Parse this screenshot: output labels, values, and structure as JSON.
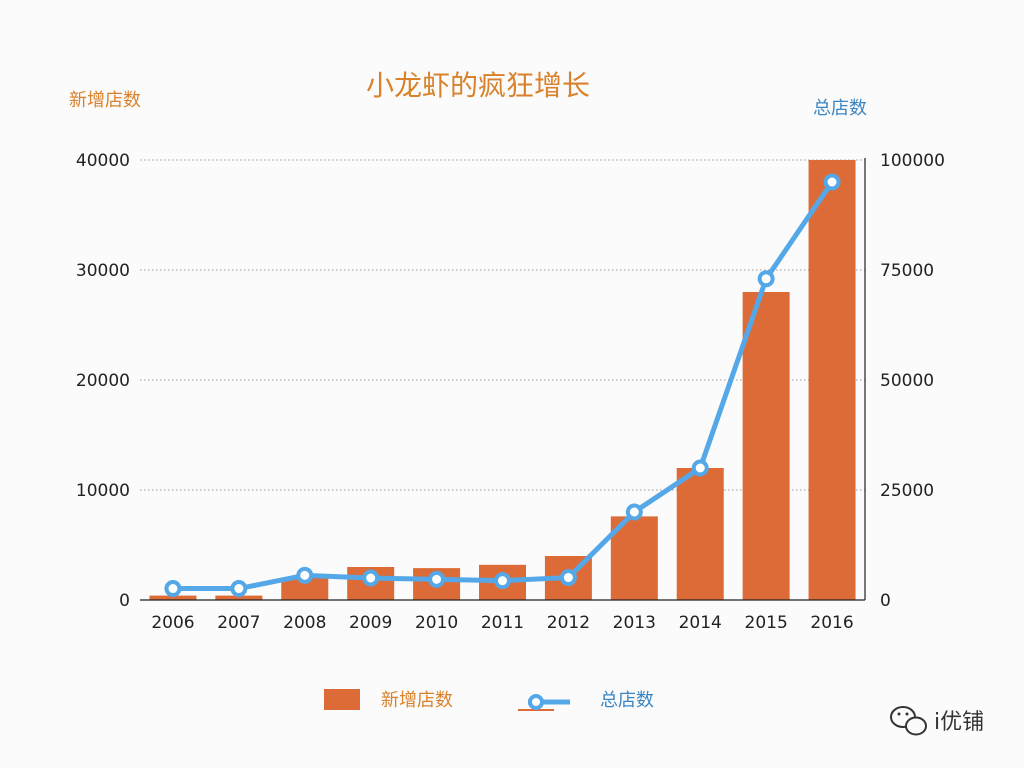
{
  "chart_data": {
    "type": "bar+line",
    "title": "小龙虾的疯狂增长",
    "categories": [
      "2006",
      "2007",
      "2008",
      "2009",
      "2010",
      "2011",
      "2012",
      "2013",
      "2014",
      "2015",
      "2016"
    ],
    "series": [
      {
        "name": "新增店数",
        "kind": "bar",
        "axis": "left",
        "color": "#DC6B37",
        "values": [
          400,
          400,
          2000,
          3000,
          2900,
          3200,
          4000,
          7600,
          12000,
          28000,
          40000
        ]
      },
      {
        "name": "总店数",
        "kind": "line",
        "axis": "right",
        "color": "#54A8E8",
        "values": [
          2600,
          2600,
          5600,
          5000,
          4700,
          4400,
          5100,
          20000,
          30000,
          73000,
          95000
        ]
      }
    ],
    "left_axis": {
      "label": "新增店数",
      "ylim": [
        0,
        40000
      ],
      "ticks": [
        "0",
        "10000",
        "20000",
        "30000",
        "40000"
      ]
    },
    "right_axis": {
      "label": "总店数",
      "ylim": [
        0,
        100000
      ],
      "ticks": [
        "0",
        "25000",
        "50000",
        "75000",
        "100000"
      ]
    },
    "grid": true,
    "legend_position": "bottom-center",
    "colors": {
      "title": "#D9822B",
      "left_axis_label": "#D9822B",
      "right_axis_label": "#3C86C3",
      "legend_bar_text": "#D9822B",
      "legend_line_text": "#3C86C3"
    }
  },
  "watermark": {
    "text": "i优铺",
    "icon": "wechat-icon"
  }
}
